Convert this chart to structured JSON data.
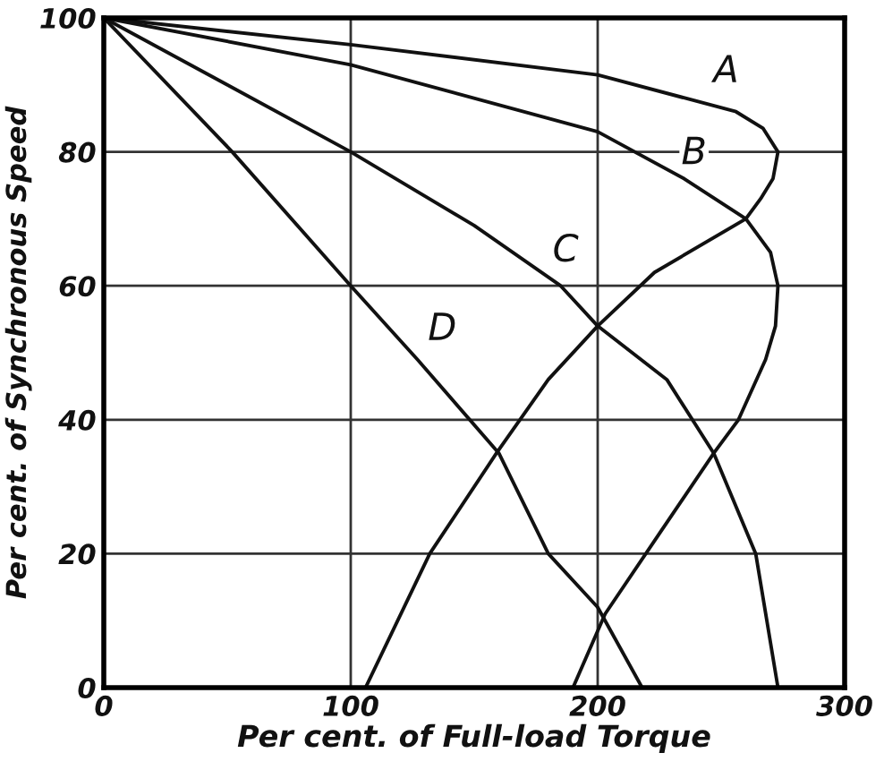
{
  "chart_data": {
    "type": "line",
    "xlabel": "Per cent. of Full-load Torque",
    "ylabel": "Per cent. of Synchronous Speed",
    "xlim": [
      0,
      300
    ],
    "ylim": [
      0,
      100
    ],
    "xticks": [
      0,
      100,
      200,
      300
    ],
    "yticks": [
      0,
      20,
      40,
      60,
      80,
      100
    ],
    "grid": true,
    "series": [
      {
        "name": "A",
        "color": "#111111",
        "x": [
          0,
          100,
          200,
          256,
          267,
          273,
          271,
          266,
          260,
          223,
          200,
          180,
          159,
          132,
          106
        ],
        "values": [
          100,
          96,
          91.5,
          86,
          83.5,
          80,
          76,
          73,
          70,
          62,
          54,
          46,
          35,
          20,
          0
        ]
      },
      {
        "name": "B",
        "color": "#111111",
        "x": [
          0,
          100,
          200,
          235,
          260,
          270,
          273,
          272,
          268,
          257,
          247,
          225,
          203,
          190
        ],
        "values": [
          100,
          93,
          83,
          76,
          70,
          65,
          60,
          54,
          49,
          40,
          35,
          23,
          11,
          0
        ]
      },
      {
        "name": "C",
        "color": "#111111",
        "x": [
          0,
          50,
          100,
          150,
          185,
          200,
          228,
          247,
          264,
          273
        ],
        "values": [
          100,
          90,
          80,
          69,
          60,
          54,
          46,
          35,
          20,
          0
        ]
      },
      {
        "name": "D",
        "color": "#111111",
        "x": [
          0,
          52,
          100,
          127,
          160,
          180,
          200,
          218
        ],
        "values": [
          100,
          80,
          60,
          49,
          35,
          20,
          12,
          0
        ]
      }
    ]
  }
}
